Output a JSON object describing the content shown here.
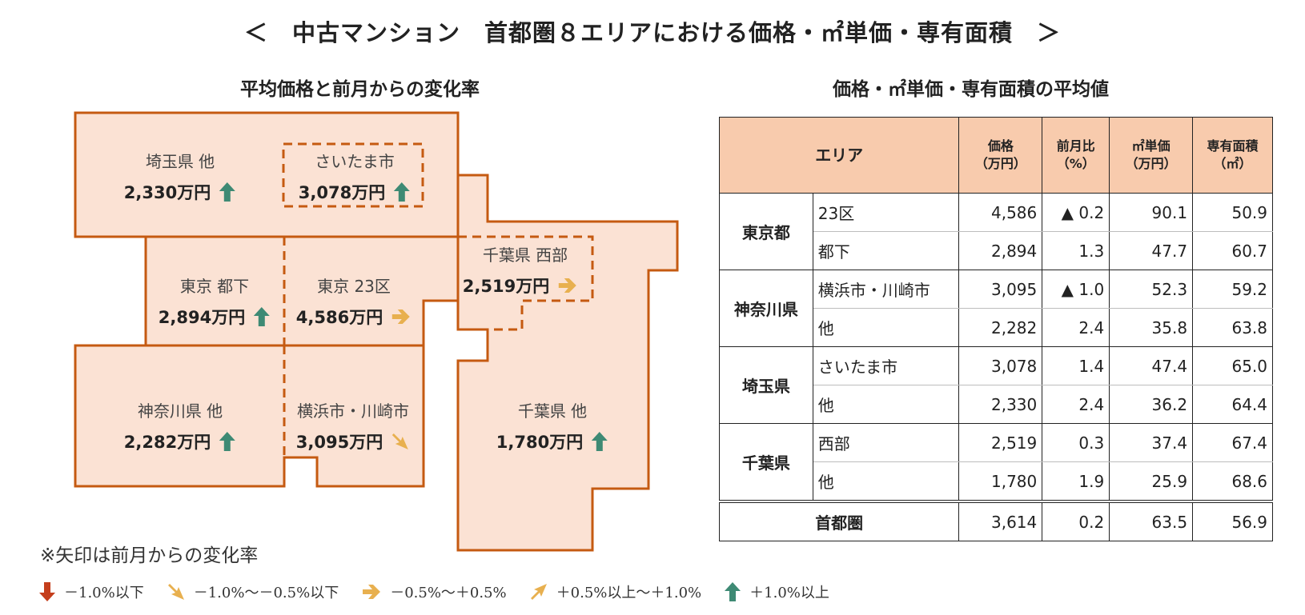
{
  "title": "＜　中古マンション　首都圏８エリアにおける価格・㎡単価・専有面積　＞",
  "map_title": "平均価格と前月からの変化率",
  "table_title": "価格・㎡単価・専有面積の平均値",
  "colors": {
    "region_fill": "#fbe2d4",
    "region_border": "#c55a11",
    "arrow_up": "#3e8a74",
    "arrow_flat": "#e8b04f",
    "arrow_down": "#c43e1c",
    "header_fill": "#f8cbad"
  },
  "map": {
    "regions": [
      {
        "label": "埼玉県 他",
        "price": "2,330万円",
        "arrow": "up-arrow-icon"
      },
      {
        "label": "さいたま市",
        "price": "3,078万円",
        "arrow": "up-arrow-icon"
      },
      {
        "label": "東京 都下",
        "price": "2,894万円",
        "arrow": "up-arrow-icon"
      },
      {
        "label": "東京 23区",
        "price": "4,586万円",
        "arrow": "right-arrow-icon"
      },
      {
        "label": "千葉県 西部",
        "price": "2,519万円",
        "arrow": "right-arrow-icon"
      },
      {
        "label": "神奈川県 他",
        "price": "2,282万円",
        "arrow": "up-arrow-icon"
      },
      {
        "label": "横浜市・川崎市",
        "price": "3,095万円",
        "arrow": "down-right-arrow-icon"
      },
      {
        "label": "千葉県 他",
        "price": "1,780万円",
        "arrow": "up-arrow-icon"
      }
    ]
  },
  "legend": {
    "note": "※矢印は前月からの変化率",
    "items": [
      {
        "icon": "down-arrow-icon",
        "text": "－1.0%以下"
      },
      {
        "icon": "down-right-arrow-icon",
        "text": "－1.0%～－0.5%以下"
      },
      {
        "icon": "right-arrow-icon",
        "text": "－0.5%～＋0.5%"
      },
      {
        "icon": "up-right-arrow-icon",
        "text": "＋0.5%以上～＋1.0%"
      },
      {
        "icon": "up-arrow-icon",
        "text": "＋1.0%以上"
      }
    ]
  },
  "table": {
    "headers": {
      "area": "エリア",
      "price": [
        "価格",
        "（万円）"
      ],
      "change": [
        "前月比",
        "（%）"
      ],
      "unit_price": [
        "㎡単価",
        "（万円）"
      ],
      "floor_area": [
        "専有面積",
        "（㎡）"
      ]
    },
    "groups": [
      {
        "pref": "東京都",
        "rows": [
          {
            "sub": "23区",
            "price": "4,586",
            "change": "▲ 0.2",
            "unit_price": "90.1",
            "floor_area": "50.9"
          },
          {
            "sub": "都下",
            "price": "2,894",
            "change": "1.3",
            "unit_price": "47.7",
            "floor_area": "60.7"
          }
        ]
      },
      {
        "pref": "神奈川県",
        "rows": [
          {
            "sub": "横浜市・川崎市",
            "price": "3,095",
            "change": "▲ 1.0",
            "unit_price": "52.3",
            "floor_area": "59.2"
          },
          {
            "sub": "他",
            "price": "2,282",
            "change": "2.4",
            "unit_price": "35.8",
            "floor_area": "63.8"
          }
        ]
      },
      {
        "pref": "埼玉県",
        "rows": [
          {
            "sub": "さいたま市",
            "price": "3,078",
            "change": "1.4",
            "unit_price": "47.4",
            "floor_area": "65.0"
          },
          {
            "sub": "他",
            "price": "2,330",
            "change": "2.4",
            "unit_price": "36.2",
            "floor_area": "64.4"
          }
        ]
      },
      {
        "pref": "千葉県",
        "rows": [
          {
            "sub": "西部",
            "price": "2,519",
            "change": "0.3",
            "unit_price": "37.4",
            "floor_area": "67.4"
          },
          {
            "sub": "他",
            "price": "1,780",
            "change": "1.9",
            "unit_price": "25.9",
            "floor_area": "68.6"
          }
        ]
      }
    ],
    "total": {
      "label": "首都圏",
      "price": "3,614",
      "change": "0.2",
      "unit_price": "63.5",
      "floor_area": "56.9"
    }
  }
}
